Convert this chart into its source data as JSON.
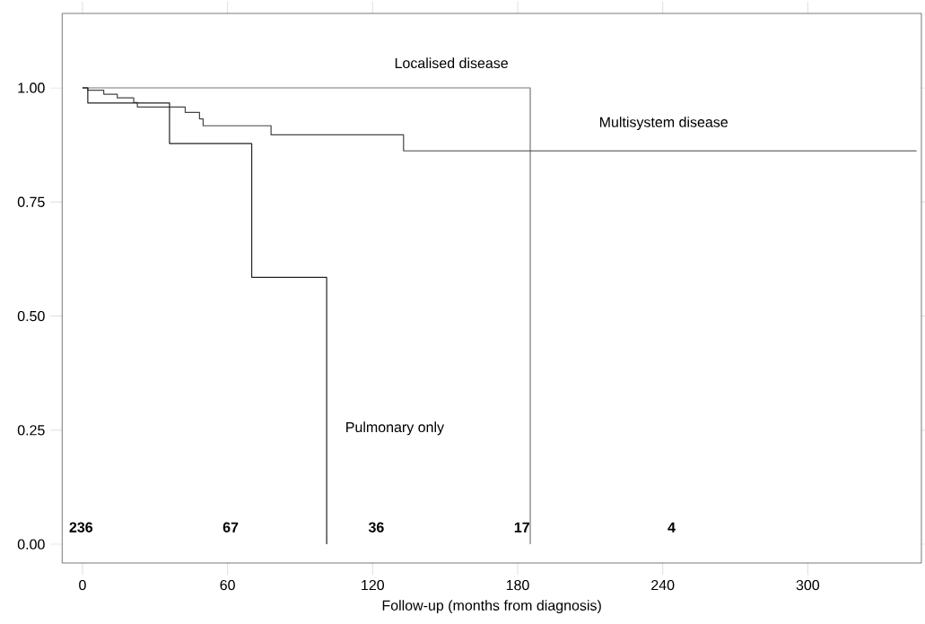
{
  "chart_data": {
    "type": "step",
    "xlabel": "Follow-up (months from diagnosis)",
    "xlim": [
      -8.4,
      347
    ],
    "ylim": [
      -0.041,
      1.163
    ],
    "xticks": [
      0,
      60,
      120,
      180,
      240,
      300
    ],
    "yticks": [
      {
        "value": 0,
        "label": "0.00"
      },
      {
        "value": 0.25,
        "label": "0.25"
      },
      {
        "value": 0.5,
        "label": "0.50"
      },
      {
        "value": 0.75,
        "label": "0.75"
      },
      {
        "value": 1,
        "label": "1.00"
      }
    ],
    "grid": false,
    "marker": "none",
    "line_style": "solid",
    "series": [
      {
        "name": "Localised disease",
        "color": "#777777",
        "x": [
          0,
          185.2
        ],
        "values": [
          1,
          0
        ]
      },
      {
        "name": "Multisystem disease",
        "color": "#444444",
        "x": [
          0,
          2.2,
          8.8,
          14.4,
          21.2,
          22.7,
          42.5,
          48.4,
          49.9,
          78,
          132.8,
          345
        ],
        "values": [
          1,
          0.995,
          0.986,
          0.978,
          0.968,
          0.958,
          0.946,
          0.932,
          0.917,
          0.897,
          0.862,
          0.862
        ]
      },
      {
        "name": "Pulmonary only",
        "color": "#222222",
        "x": [
          0,
          2.2,
          36,
          70,
          101
        ],
        "values": [
          1,
          0.967,
          0.878,
          0.585,
          0
        ]
      }
    ],
    "annotations": [
      "236",
      "67",
      "36",
      "17",
      "4"
    ]
  }
}
